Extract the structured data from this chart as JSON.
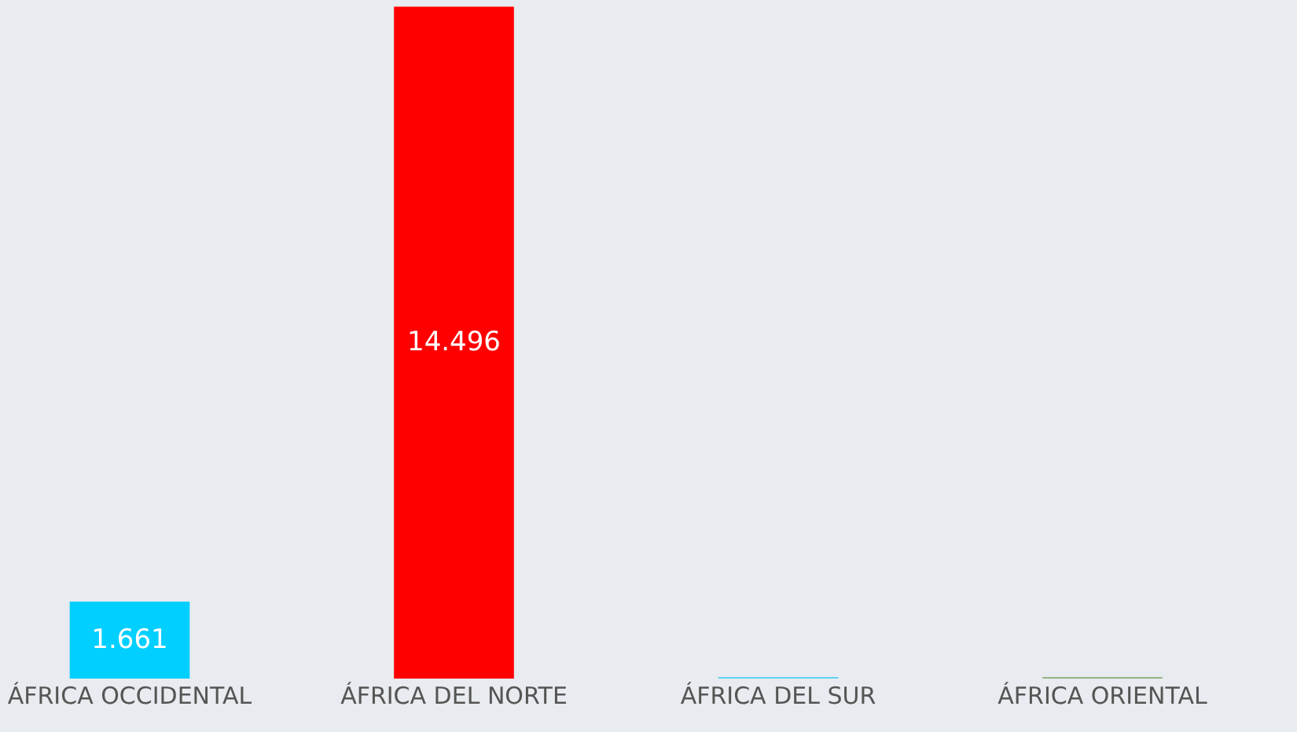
{
  "chart_data": {
    "type": "bar",
    "categories": [
      "ÁFRICA OCCIDENTAL",
      "ÁFRICA DEL NORTE",
      "ÁFRICA DEL SUR",
      "ÁFRICA ORIENTAL"
    ],
    "values": [
      1661,
      14496,
      30,
      30
    ],
    "colors": [
      "#00cfff",
      "#ff0000",
      "#5fd0f0",
      "#93b47e"
    ],
    "value_labels": [
      "1.661",
      "14.496",
      null,
      null
    ],
    "ylim": [
      0,
      14640
    ],
    "tick_labels": "x",
    "grid": false,
    "legend": false
  }
}
